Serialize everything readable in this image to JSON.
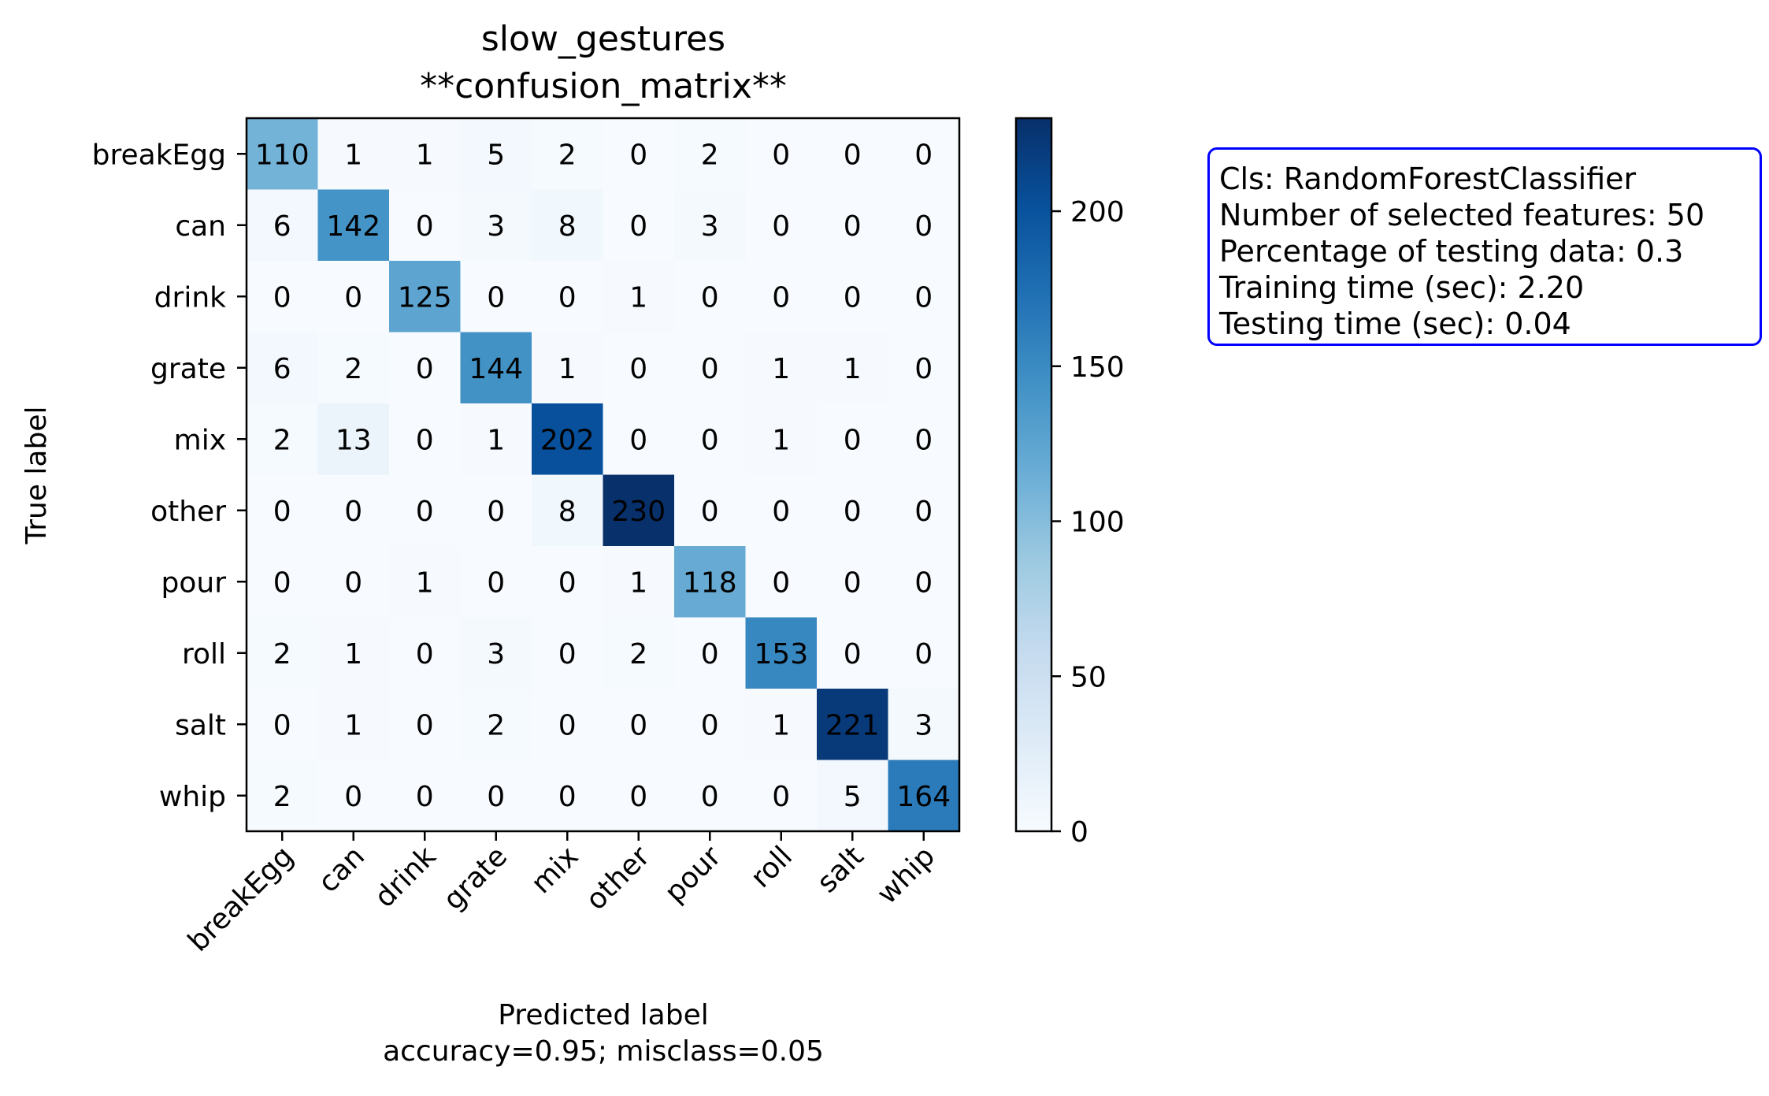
{
  "chart_data": {
    "type": "heatmap",
    "title": "slow_gestures",
    "subtitle": "**confusion_matrix**",
    "xlabel": "Predicted label",
    "xlabel_sub": "accuracy=0.95; misclass=0.05",
    "ylabel": "True label",
    "labels": [
      "breakEgg",
      "can",
      "drink",
      "grate",
      "mix",
      "other",
      "pour",
      "roll",
      "salt",
      "whip"
    ],
    "matrix": [
      [
        110,
        1,
        1,
        5,
        2,
        0,
        2,
        0,
        0,
        0
      ],
      [
        6,
        142,
        0,
        3,
        8,
        0,
        3,
        0,
        0,
        0
      ],
      [
        0,
        0,
        125,
        0,
        0,
        1,
        0,
        0,
        0,
        0
      ],
      [
        6,
        2,
        0,
        144,
        1,
        0,
        0,
        1,
        1,
        0
      ],
      [
        2,
        13,
        0,
        1,
        202,
        0,
        0,
        1,
        0,
        0
      ],
      [
        0,
        0,
        0,
        0,
        8,
        230,
        0,
        0,
        0,
        0
      ],
      [
        0,
        0,
        1,
        0,
        0,
        1,
        118,
        0,
        0,
        0
      ],
      [
        2,
        1,
        0,
        3,
        0,
        2,
        0,
        153,
        0,
        0
      ],
      [
        0,
        1,
        0,
        2,
        0,
        0,
        0,
        1,
        221,
        3
      ],
      [
        2,
        0,
        0,
        0,
        0,
        0,
        0,
        0,
        5,
        164
      ]
    ],
    "colormap": "Blues",
    "colorbar": {
      "min": 0,
      "max": 230,
      "ticks": [
        0,
        50,
        100,
        150,
        200
      ]
    },
    "grid": false,
    "legend": "none"
  },
  "info_box": {
    "lines": [
      "Cls: RandomForestClassifier",
      "Number of selected features: 50",
      "Percentage of testing data: 0.3",
      "Training time (sec): 2.20",
      "Testing time (sec): 0.04"
    ],
    "border_color": "#0000ff"
  }
}
